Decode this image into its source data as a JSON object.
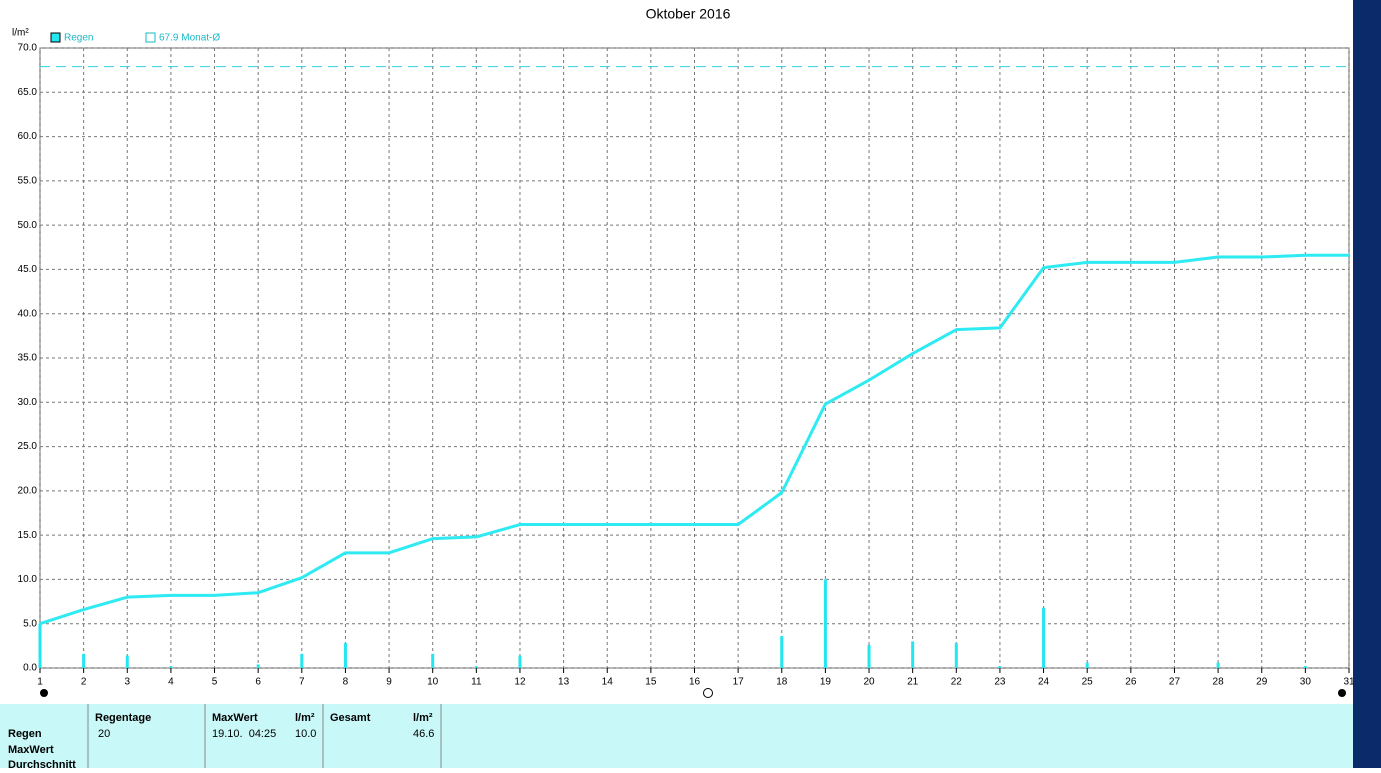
{
  "chart_data": {
    "type": "bar-line",
    "title": "Oktober 2016",
    "y_label": "l/m²",
    "x": [
      1,
      2,
      3,
      4,
      5,
      6,
      7,
      8,
      9,
      10,
      11,
      12,
      13,
      14,
      15,
      16,
      17,
      18,
      19,
      20,
      21,
      22,
      23,
      24,
      25,
      26,
      27,
      28,
      29,
      30,
      31
    ],
    "xlim": [
      1,
      31
    ],
    "xticks": [
      1,
      2,
      3,
      4,
      5,
      6,
      7,
      8,
      9,
      10,
      11,
      12,
      13,
      14,
      15,
      16,
      17,
      18,
      19,
      20,
      21,
      22,
      23,
      24,
      25,
      26,
      27,
      28,
      29,
      30,
      31
    ],
    "ylim": [
      0,
      70
    ],
    "yticks": [
      {
        "value": 0,
        "label": "0.0"
      },
      {
        "value": 5,
        "label": "5.0"
      },
      {
        "value": 10,
        "label": "10.0"
      },
      {
        "value": 15,
        "label": "15.0"
      },
      {
        "value": 20,
        "label": "20.0"
      },
      {
        "value": 25,
        "label": "25.0"
      },
      {
        "value": 30,
        "label": "30.0"
      },
      {
        "value": 35,
        "label": "35.0"
      },
      {
        "value": 40,
        "label": "40.0"
      },
      {
        "value": 45,
        "label": "45.0"
      },
      {
        "value": 50,
        "label": "50.0"
      },
      {
        "value": 55,
        "label": "55.0"
      },
      {
        "value": 60,
        "label": "60.0"
      },
      {
        "value": 65,
        "label": "65.0"
      },
      {
        "value": 70,
        "label": "70.0"
      }
    ],
    "grid": true,
    "series": [
      {
        "name": "Regen",
        "type": "bar",
        "color": "#22e6f0",
        "values": [
          5.0,
          1.6,
          1.4,
          0.2,
          0,
          0.4,
          1.6,
          2.8,
          0,
          1.6,
          0.2,
          1.4,
          0,
          0,
          0,
          0,
          0,
          3.6,
          10.0,
          2.6,
          3.0,
          2.8,
          0.2,
          6.8,
          0.6,
          0,
          0,
          0.6,
          0,
          0.2,
          0
        ]
      },
      {
        "type": "line",
        "color": "#2eeaf2",
        "values": [
          5.0,
          6.6,
          8.0,
          8.2,
          8.2,
          8.5,
          10.2,
          13.0,
          13.0,
          14.6,
          14.8,
          16.2,
          16.2,
          16.2,
          16.2,
          16.2,
          16.2,
          19.8,
          29.8,
          32.5,
          35.5,
          38.2,
          38.4,
          45.2,
          45.8,
          45.8,
          45.8,
          46.4,
          46.4,
          46.6,
          46.6
        ]
      }
    ],
    "reference": {
      "name": "67.9 Monat-Ø",
      "value": 67.9,
      "color": "#22d8e6"
    }
  },
  "table": {
    "header": [
      "Regentage",
      "MaxWert",
      "l/m²",
      "Gesamt",
      "l/m²"
    ],
    "row_labels": [
      "Regen",
      "MaxWert",
      "Durchschnitt"
    ],
    "values": [
      "20",
      "19.10.  04:25",
      "10.0",
      "46.6"
    ]
  }
}
